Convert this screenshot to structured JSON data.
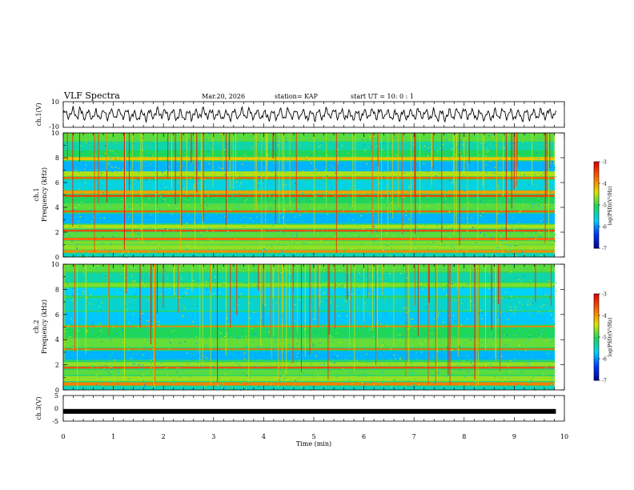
{
  "header": {
    "title": "VLF Spectra",
    "date": "Mar.20, 2026",
    "station": "station= KAP",
    "start": "start  UT =   10: 0   : 1"
  },
  "chart_data": [
    {
      "type": "line",
      "name": "ch1-waveform",
      "ylabel": "ch.1(V)",
      "ylim": [
        -10,
        10
      ],
      "yticklabels": [
        "10",
        "-10"
      ],
      "x_range": [
        0,
        9.83
      ],
      "style": "noisy oscillation around ~0 V, amplitude ~5 V"
    },
    {
      "type": "heatmap",
      "name": "ch1-spectrogram",
      "ylabel_line1": "ch.1",
      "ylabel_line2": "Frequency (kHz)",
      "ylim": [
        0,
        10
      ],
      "yticks": [
        0,
        2,
        4,
        6,
        8,
        10
      ],
      "yticklabels": [
        "0",
        "2",
        "4",
        "6",
        "8",
        "10"
      ],
      "colorbar": {
        "label": "log(PSD)(V²/Hz)",
        "range": [
          -7,
          -3
        ],
        "ticks": [
          "-3",
          "-4",
          "-5",
          "-6",
          "-7"
        ]
      }
    },
    {
      "type": "heatmap",
      "name": "ch2-spectrogram",
      "ylabel_line1": "ch.2",
      "ylabel_line2": "Frequency (kHz)",
      "ylim": [
        0,
        10
      ],
      "yticks": [
        0,
        2,
        4,
        6,
        8,
        10
      ],
      "yticklabels": [
        "0",
        "2",
        "4",
        "6",
        "8",
        "10"
      ],
      "colorbar": {
        "label": "log(PSD)(V²/Hz)",
        "range": [
          -7,
          -3
        ],
        "ticks": [
          "-3",
          "-4",
          "-5",
          "-6",
          "-7"
        ]
      }
    },
    {
      "type": "line",
      "name": "ch3-signal",
      "ylabel": "ch.3(V)",
      "ylim": [
        -5,
        5
      ],
      "yticklabels": [
        "5",
        "0",
        "-5"
      ],
      "level": -1.2,
      "x_range": [
        0,
        9.83
      ]
    }
  ],
  "xaxis": {
    "label": "Time  (min)",
    "range": [
      0,
      10
    ],
    "ticklabels": [
      "0",
      "1",
      "2",
      "3",
      "4",
      "5",
      "6",
      "7",
      "8",
      "9",
      "10"
    ]
  }
}
